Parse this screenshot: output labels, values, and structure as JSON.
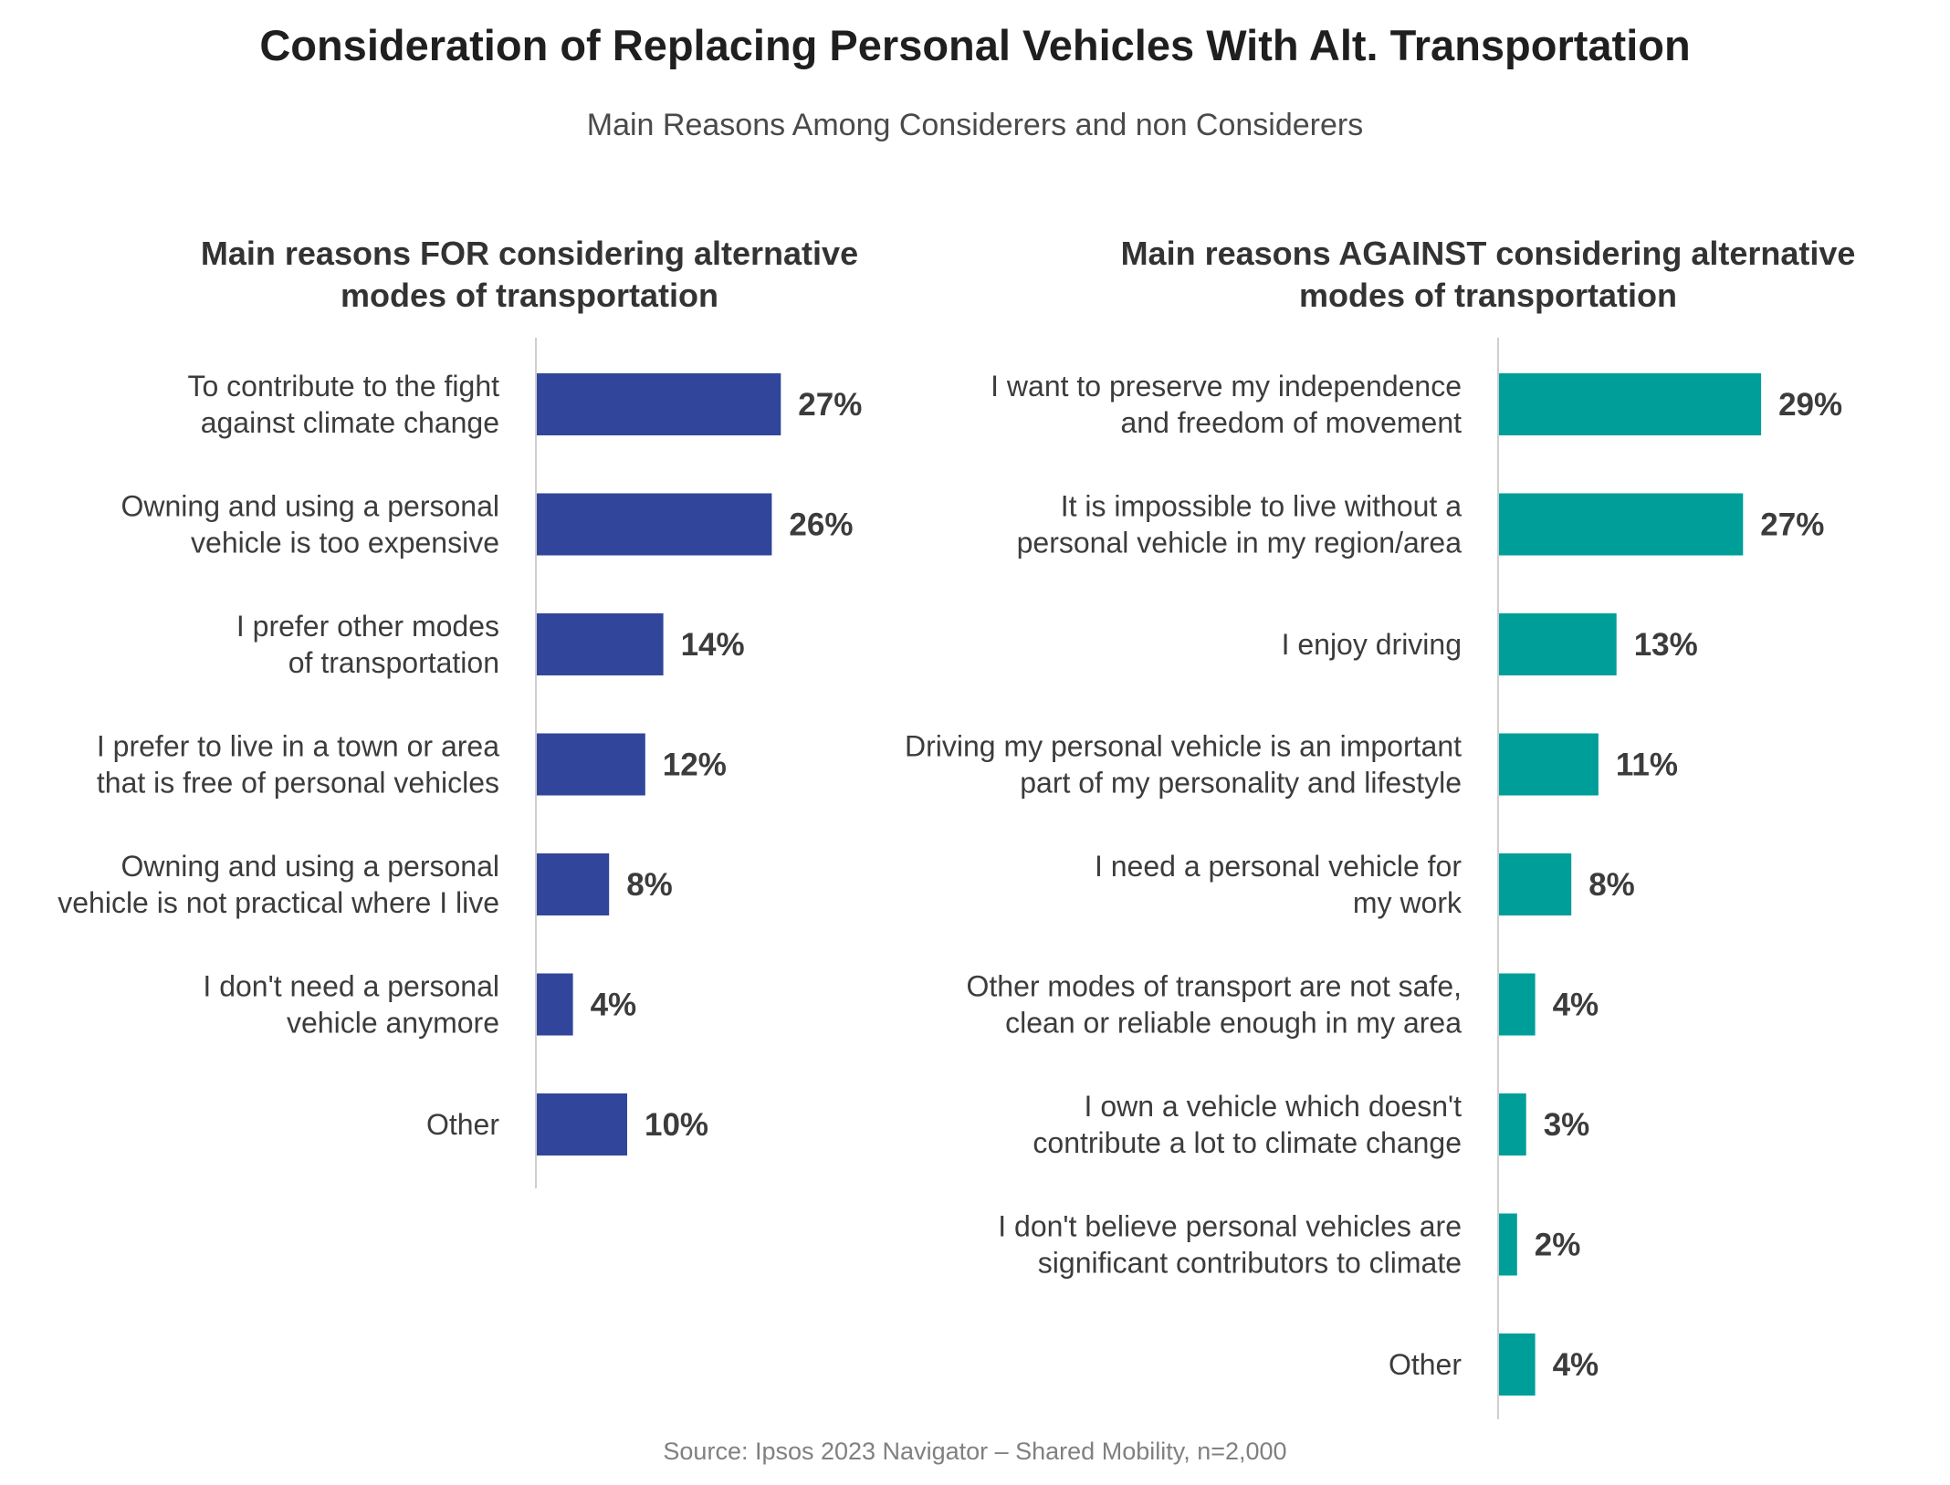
{
  "title": "Consideration of Replacing Personal Vehicles With Alt. Transportation",
  "subtitle": "Main Reasons Among Considerers and non Considerers",
  "source": "Source: Ipsos 2023 Navigator – Shared Mobility, n=2,000",
  "chart_data": [
    {
      "type": "bar",
      "orientation": "horizontal",
      "title_lines": [
        "Main reasons FOR considering alternative",
        "modes of transportation"
      ],
      "color": "#31469b",
      "value_format": "percent",
      "xlim": [
        0,
        30
      ],
      "categories": [
        [
          "To contribute to the fight",
          "against climate change"
        ],
        [
          "Owning and using a personal",
          "vehicle is too expensive"
        ],
        [
          "I prefer other modes",
          "of transportation"
        ],
        [
          "I prefer to live in a town or area",
          "that is free of personal vehicles"
        ],
        [
          "Owning and using a personal",
          "vehicle is not practical where I live"
        ],
        [
          "I don't need a personal",
          "vehicle anymore"
        ],
        [
          "Other"
        ]
      ],
      "values": [
        27,
        26,
        14,
        12,
        8,
        4,
        10
      ]
    },
    {
      "type": "bar",
      "orientation": "horizontal",
      "title_lines": [
        "Main reasons AGAINST considering alternative",
        "modes of transportation"
      ],
      "color": "#009e99",
      "value_format": "percent",
      "xlim": [
        0,
        30
      ],
      "categories": [
        [
          "I want to preserve my independence",
          "and freedom of movement"
        ],
        [
          "It is impossible to live without a",
          "personal vehicle in my region/area"
        ],
        [
          "I enjoy driving"
        ],
        [
          "Driving my personal vehicle is an important",
          "part of my personality and lifestyle"
        ],
        [
          "I need a personal vehicle for",
          "my work"
        ],
        [
          "Other modes of transport are not safe,",
          "clean or reliable enough in my area"
        ],
        [
          "I own a vehicle which doesn't",
          "contribute a lot to climate change"
        ],
        [
          "I don't believe personal vehicles are",
          "significant contributors to climate"
        ],
        [
          "Other"
        ]
      ],
      "values": [
        29,
        27,
        13,
        11,
        8,
        4,
        3,
        2,
        4
      ]
    }
  ]
}
